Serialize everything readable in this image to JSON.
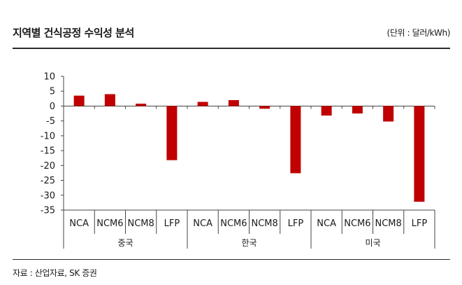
{
  "header": {
    "title": "지역별 건식공정 수익성 분석",
    "unit": "(단위 : 달러/kWh)"
  },
  "footer": {
    "source": "자료 : 산업자료, SK 증권"
  },
  "colors": {
    "bar": "#c00000",
    "axis": "#444444",
    "text": "#1a1a1a"
  },
  "chart_data": {
    "type": "bar",
    "ylim": [
      -35,
      10
    ],
    "yticks": [
      10,
      5,
      0,
      -5,
      -10,
      -15,
      -20,
      -25,
      -30,
      -35
    ],
    "grid": false,
    "legend": "none",
    "groups": [
      "중국",
      "한국",
      "미국"
    ],
    "categories": [
      "NCA",
      "NCM6",
      "NCM8",
      "LFP",
      "NCA",
      "NCM6",
      "NCM8",
      "LFP",
      "NCA",
      "NCM6",
      "NCM8",
      "LFP"
    ],
    "category_group": [
      "중국",
      "중국",
      "중국",
      "중국",
      "한국",
      "한국",
      "한국",
      "한국",
      "미국",
      "미국",
      "미국",
      "미국"
    ],
    "values": [
      3.5,
      4.0,
      0.8,
      -18.2,
      1.4,
      2.0,
      -0.9,
      -22.6,
      -3.2,
      -2.5,
      -5.2,
      -32.2
    ]
  }
}
